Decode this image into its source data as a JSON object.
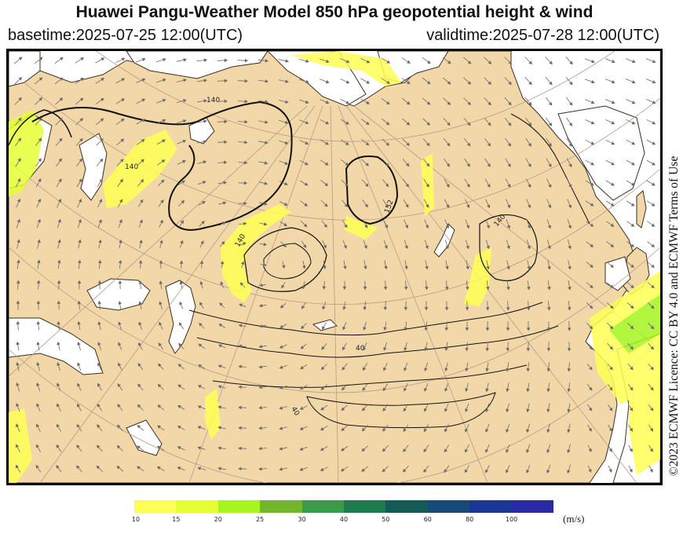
{
  "header": {
    "title": "Huawei Pangu-Weather Model 850 hPa geopotential height & wind",
    "basetime": "basetime:2025-07-25 12:00(UTC)",
    "validtime": "validtime:2025-07-28 12:00(UTC)"
  },
  "licence": "©2023 ECMWF Licence: CC BY 4.0 and ECMWF Terms of Use",
  "colors": {
    "land": "#f2d8a8",
    "sea": "#ffffff",
    "coast": "#3a2e22",
    "contour": "#111111",
    "graticule": "#b99a88",
    "arrow": "#6a6a6a"
  },
  "map": {
    "contour_labels": [
      "140",
      "140",
      "152",
      "140",
      "140",
      "40",
      "40"
    ],
    "wind_speed_fill_levels": [
      10,
      15
    ]
  },
  "colorbar": {
    "unit": "(m/s)",
    "levels": [
      {
        "label": "10",
        "color": "#ffff55"
      },
      {
        "label": "15",
        "color": "#e5ff33"
      },
      {
        "label": "20",
        "color": "#a6f51e"
      },
      {
        "label": "25",
        "color": "#74b52e"
      },
      {
        "label": "30",
        "color": "#3d9a4b"
      },
      {
        "label": "40",
        "color": "#1f7a4f"
      },
      {
        "label": "50",
        "color": "#155a55"
      },
      {
        "label": "60",
        "color": "#184a78"
      },
      {
        "label": "80",
        "color": "#1b3796"
      },
      {
        "label": "100",
        "color": "#2a2aa5"
      }
    ]
  }
}
